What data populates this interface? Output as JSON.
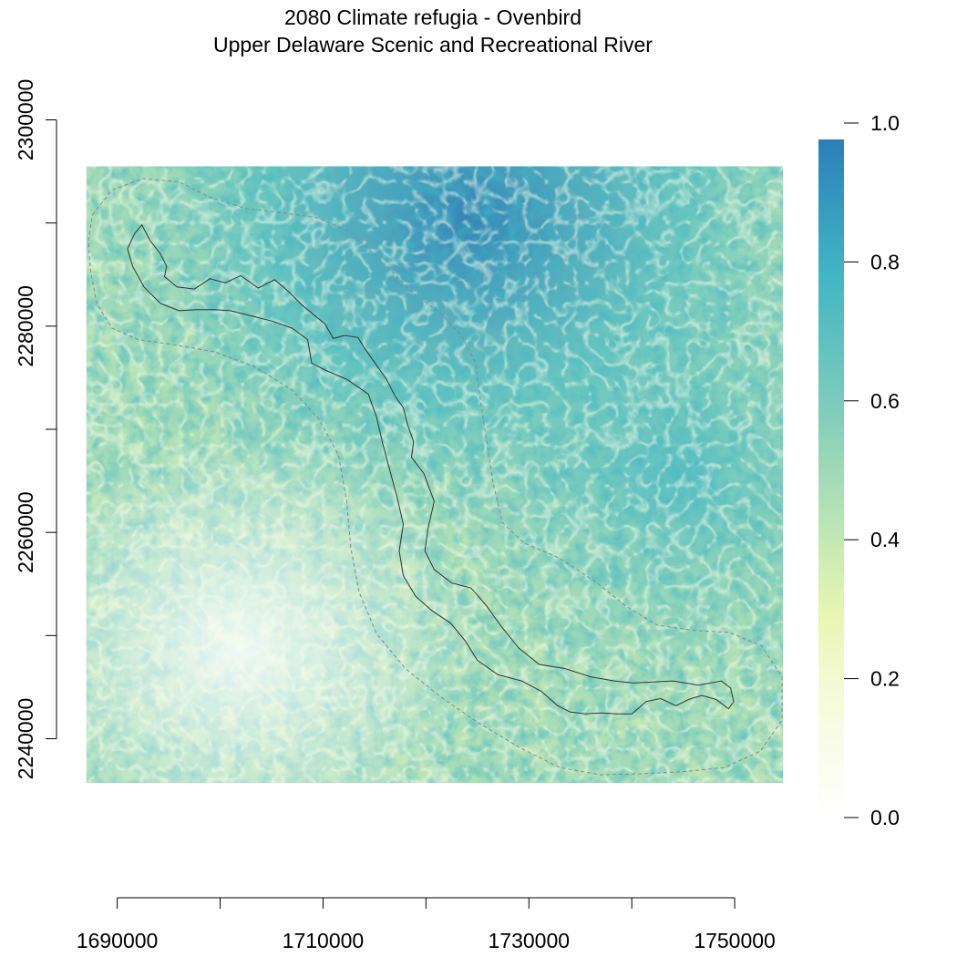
{
  "title": "2080 Climate refugia - Ovenbird",
  "subtitle": "Upper Delaware Scenic and Recreational River",
  "colors": {
    "scale_0": "#ffffff",
    "scale_0_2": "#f4fad4",
    "scale_0_3": "#e8f6b1",
    "scale_0_4": "#c7e9b4",
    "scale_0_6": "#7fcdbb",
    "scale_0_8": "#41b6c4",
    "scale_1": "#2c7fb8",
    "river_boundary": "#333333",
    "buffer_boundary": "#888888"
  },
  "chart_data": {
    "type": "heatmap",
    "title": "2080 Climate refugia - Ovenbird",
    "subtitle": "Upper Delaware Scenic and Recreational River",
    "variable": "Climate refugia",
    "x_ticks": [
      "1690000",
      "1710000",
      "1730000",
      "1750000"
    ],
    "x_tick_values": [
      1690000,
      1700000,
      1710000,
      1720000,
      1730000,
      1740000,
      1750000
    ],
    "y_ticks": [
      "2240000",
      "2260000",
      "2280000",
      "2300000"
    ],
    "y_tick_values": [
      2240000,
      2250000,
      2260000,
      2270000,
      2280000,
      2290000,
      2300000
    ],
    "raster_extent": {
      "xmin": 1687000,
      "xmax": 1754700,
      "ymin": 2235700,
      "ymax": 2295500
    },
    "legend": {
      "position": "right",
      "range": [
        0,
        1
      ],
      "ticks": [
        "0.0",
        "0.2",
        "0.4",
        "0.6",
        "0.8",
        "1.0"
      ],
      "tick_values": [
        0,
        0.2,
        0.4,
        0.6,
        0.8,
        1.0
      ]
    },
    "river_outline_data": [
      [
        1692400,
        2289800
      ],
      [
        1693200,
        2288300
      ],
      [
        1694200,
        2287000
      ],
      [
        1694800,
        2285800
      ],
      [
        1694600,
        2284800
      ],
      [
        1695800,
        2283800
      ],
      [
        1697500,
        2283600
      ],
      [
        1699000,
        2284600
      ],
      [
        1700500,
        2284200
      ],
      [
        1702000,
        2284900
      ],
      [
        1703700,
        2283700
      ],
      [
        1705300,
        2284500
      ],
      [
        1706700,
        2283300
      ],
      [
        1708000,
        2282000
      ],
      [
        1709000,
        2281200
      ],
      [
        1710200,
        2280200
      ],
      [
        1711000,
        2278800
      ],
      [
        1712100,
        2279100
      ],
      [
        1713400,
        2278900
      ],
      [
        1714000,
        2277900
      ],
      [
        1715000,
        2276500
      ],
      [
        1716200,
        2274800
      ],
      [
        1717000,
        2273200
      ],
      [
        1717800,
        2272100
      ],
      [
        1718200,
        2270500
      ],
      [
        1718800,
        2268800
      ],
      [
        1718600,
        2267300
      ],
      [
        1719800,
        2265700
      ],
      [
        1720800,
        2263000
      ],
      [
        1720200,
        2260400
      ],
      [
        1719900,
        2258200
      ],
      [
        1720800,
        2256400
      ],
      [
        1722500,
        2255100
      ],
      [
        1724400,
        2254600
      ],
      [
        1725800,
        2253000
      ],
      [
        1727300,
        2250900
      ],
      [
        1729000,
        2248800
      ],
      [
        1731000,
        2247200
      ],
      [
        1733500,
        2246800
      ],
      [
        1736000,
        2246000
      ],
      [
        1738300,
        2245600
      ],
      [
        1740200,
        2245400
      ],
      [
        1742100,
        2245500
      ],
      [
        1744000,
        2245600
      ],
      [
        1746500,
        2245200
      ],
      [
        1748700,
        2245600
      ],
      [
        1749600,
        2244900
      ],
      [
        1749900,
        2243600
      ],
      [
        1749400,
        2242900
      ],
      [
        1748200,
        2243800
      ],
      [
        1746800,
        2244200
      ],
      [
        1745500,
        2243800
      ],
      [
        1744300,
        2243200
      ],
      [
        1742800,
        2243900
      ],
      [
        1741400,
        2243600
      ],
      [
        1740000,
        2242400
      ],
      [
        1738600,
        2242400
      ],
      [
        1737000,
        2242500
      ],
      [
        1735500,
        2242400
      ],
      [
        1734000,
        2242600
      ],
      [
        1732800,
        2243200
      ],
      [
        1731200,
        2244600
      ],
      [
        1729300,
        2245600
      ],
      [
        1727000,
        2246200
      ],
      [
        1725000,
        2247600
      ],
      [
        1723800,
        2249500
      ],
      [
        1722400,
        2251200
      ],
      [
        1720600,
        2252400
      ],
      [
        1719000,
        2253800
      ],
      [
        1717800,
        2255800
      ],
      [
        1717400,
        2258200
      ],
      [
        1717800,
        2260800
      ],
      [
        1717200,
        2263400
      ],
      [
        1716500,
        2266000
      ],
      [
        1715800,
        2268600
      ],
      [
        1715200,
        2271200
      ],
      [
        1714400,
        2273400
      ],
      [
        1712400,
        2274800
      ],
      [
        1710300,
        2275700
      ],
      [
        1708900,
        2276400
      ],
      [
        1708500,
        2278700
      ],
      [
        1707000,
        2279800
      ],
      [
        1705000,
        2280500
      ],
      [
        1703000,
        2281000
      ],
      [
        1701000,
        2281500
      ],
      [
        1699500,
        2281600
      ],
      [
        1697700,
        2281600
      ],
      [
        1696000,
        2281500
      ],
      [
        1694200,
        2282200
      ],
      [
        1692600,
        2283800
      ],
      [
        1691500,
        2285800
      ],
      [
        1691000,
        2287500
      ],
      [
        1691700,
        2289000
      ]
    ],
    "buffer_outline_data": [
      [
        1687600,
        2290800
      ],
      [
        1689500,
        2293200
      ],
      [
        1692500,
        2294300
      ],
      [
        1696000,
        2294000
      ],
      [
        1699000,
        2292500
      ],
      [
        1702500,
        2291400
      ],
      [
        1706000,
        2291000
      ],
      [
        1709500,
        2290500
      ],
      [
        1712500,
        2289200
      ],
      [
        1715000,
        2287000
      ],
      [
        1717200,
        2284800
      ],
      [
        1719000,
        2283000
      ],
      [
        1721500,
        2281200
      ],
      [
        1723500,
        2279000
      ],
      [
        1724800,
        2276500
      ],
      [
        1725200,
        2273500
      ],
      [
        1725800,
        2269500
      ],
      [
        1726500,
        2265000
      ],
      [
        1727400,
        2261000
      ],
      [
        1729500,
        2259000
      ],
      [
        1733000,
        2257500
      ],
      [
        1736500,
        2255200
      ],
      [
        1739500,
        2252800
      ],
      [
        1742500,
        2251000
      ],
      [
        1746000,
        2250500
      ],
      [
        1749500,
        2250300
      ],
      [
        1752600,
        2249000
      ],
      [
        1754600,
        2246000
      ],
      [
        1754600,
        2241800
      ],
      [
        1752500,
        2238800
      ],
      [
        1749000,
        2237200
      ],
      [
        1745000,
        2236800
      ],
      [
        1741000,
        2236600
      ],
      [
        1737000,
        2236500
      ],
      [
        1733000,
        2237200
      ],
      [
        1729000,
        2239200
      ],
      [
        1725000,
        2241600
      ],
      [
        1721500,
        2244000
      ],
      [
        1718000,
        2246800
      ],
      [
        1715200,
        2250200
      ],
      [
        1713500,
        2254200
      ],
      [
        1712700,
        2258500
      ],
      [
        1712300,
        2263000
      ],
      [
        1711500,
        2267500
      ],
      [
        1709600,
        2271000
      ],
      [
        1707000,
        2273800
      ],
      [
        1703500,
        2276000
      ],
      [
        1699500,
        2277500
      ],
      [
        1695500,
        2278200
      ],
      [
        1692000,
        2278700
      ],
      [
        1689500,
        2279800
      ],
      [
        1688000,
        2282200
      ],
      [
        1687400,
        2285500
      ],
      [
        1687200,
        2288300
      ]
    ]
  }
}
